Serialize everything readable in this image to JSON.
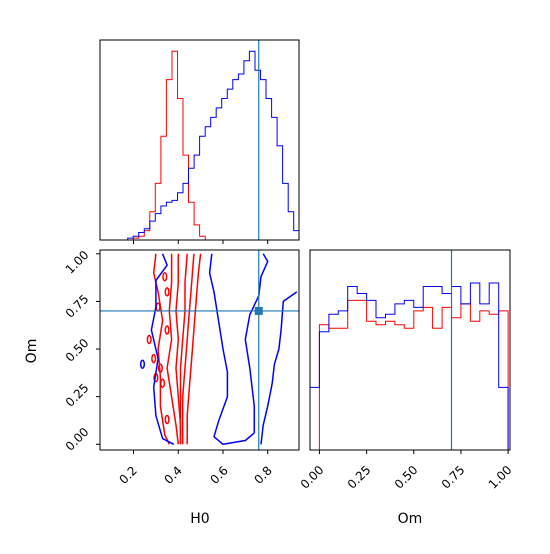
{
  "chart_data": {
    "type": "corner",
    "parameters": [
      "H0",
      "Om"
    ],
    "truth": {
      "H0": 0.76,
      "Om": 0.7
    },
    "truth_color": "#1f77b4",
    "series": [
      {
        "color": "#ff0000"
      },
      {
        "color": "#0000ff"
      }
    ],
    "panels": [
      {
        "id": "hist-h0",
        "type": "step-histogram",
        "xlim": [
          0.05,
          0.94
        ],
        "ylim": [
          0,
          1.06
        ],
        "bins": [
          0.05,
          0.0748,
          0.0995,
          0.1243,
          0.149,
          0.1738,
          0.1985,
          0.2233,
          0.248,
          0.2728,
          0.2975,
          0.3223,
          0.347,
          0.3718,
          0.3965,
          0.4213,
          0.446,
          0.4708,
          0.4955,
          0.5203,
          0.545,
          0.5698,
          0.5945,
          0.6193,
          0.644,
          0.6688,
          0.6935,
          0.7183,
          0.743,
          0.7678,
          0.7925,
          0.8173,
          0.842,
          0.8668,
          0.8915,
          0.9163,
          0.94
        ],
        "series": [
          {
            "values": [
              0,
              0,
              0,
              0,
              0,
              0,
              0.01,
              0.02,
              0.05,
              0.15,
              0.3,
              0.55,
              0.85,
              1.0,
              0.75,
              0.45,
              0.2,
              0.08,
              0.02,
              0,
              0,
              0,
              0,
              0,
              0,
              0,
              0,
              0,
              0,
              0,
              0,
              0,
              0,
              0,
              0,
              0
            ]
          },
          {
            "values": [
              0,
              0,
              0,
              0,
              0,
              0.01,
              0.02,
              0.04,
              0.06,
              0.1,
              0.14,
              0.18,
              0.2,
              0.21,
              0.25,
              0.3,
              0.38,
              0.45,
              0.55,
              0.6,
              0.65,
              0.7,
              0.75,
              0.8,
              0.85,
              0.88,
              0.95,
              1.0,
              0.9,
              0.85,
              0.75,
              0.65,
              0.5,
              0.3,
              0.15,
              0.05
            ]
          }
        ]
      },
      {
        "id": "hist-om",
        "type": "step-histogram",
        "xlim": [
          -0.05,
          1.01
        ],
        "ylim": [
          0,
          1.15
        ],
        "ticks": [
          0.0,
          0.25,
          0.5,
          0.75,
          1.0
        ],
        "tick_labels": [
          "0.00",
          "0.25",
          "0.50",
          "0.75",
          "1.00"
        ],
        "xlabel": "Om",
        "bins": [
          -0.05,
          0,
          0.05,
          0.1,
          0.15,
          0.2,
          0.25,
          0.3,
          0.35,
          0.4,
          0.45,
          0.5,
          0.55,
          0.6,
          0.65,
          0.7,
          0.75,
          0.8,
          0.85,
          0.9,
          0.95,
          1.0
        ],
        "series": [
          {
            "values": [
              0,
              0.72,
              0.7,
              0.7,
              0.86,
              0.86,
              0.74,
              0.72,
              0.74,
              0.72,
              0.7,
              0.8,
              0.82,
              0.7,
              0.82,
              0.76,
              0.84,
              0.74,
              0.8,
              0.78,
              0.8
            ]
          },
          {
            "values": [
              0.36,
              0.68,
              0.78,
              0.8,
              0.94,
              0.9,
              0.86,
              0.76,
              0.78,
              0.84,
              0.86,
              0.82,
              0.94,
              0.94,
              0.9,
              0.94,
              0.84,
              0.96,
              0.84,
              0.96,
              0.36
            ]
          }
        ]
      },
      {
        "id": "joint-h0-om",
        "type": "contour",
        "xlim": [
          0.05,
          0.94
        ],
        "ylim": [
          -0.03,
          1.02
        ],
        "xticks": [
          0.2,
          0.4,
          0.6,
          0.8
        ],
        "xtick_labels": [
          "0.2",
          "0.4",
          "0.6",
          "0.8"
        ],
        "yticks": [
          0.0,
          0.25,
          0.5,
          0.75,
          1.0
        ],
        "ytick_labels": [
          "0.00",
          "0.25",
          "0.50",
          "0.75",
          "1.00"
        ],
        "xlabel": "H0",
        "ylabel": "Om",
        "series": [
          {
            "contours": [
              [
                [
                  0.3,
                  1.0
                ],
                [
                  0.29,
                  0.9
                ],
                [
                  0.31,
                  0.8
                ],
                [
                  0.33,
                  0.65
                ],
                [
                  0.31,
                  0.5
                ],
                [
                  0.32,
                  0.35
                ],
                [
                  0.32,
                  0.2
                ],
                [
                  0.34,
                  0.05
                ],
                [
                  0.36,
                  0.0
                ]
              ],
              [
                [
                  0.5,
                  1.0
                ],
                [
                  0.49,
                  0.9
                ],
                [
                  0.48,
                  0.75
                ],
                [
                  0.47,
                  0.6
                ],
                [
                  0.46,
                  0.45
                ],
                [
                  0.45,
                  0.3
                ],
                [
                  0.44,
                  0.15
                ],
                [
                  0.44,
                  0.0
                ]
              ],
              [
                [
                  0.37,
                  1.0
                ],
                [
                  0.37,
                  0.85
                ],
                [
                  0.36,
                  0.7
                ],
                [
                  0.37,
                  0.55
                ],
                [
                  0.35,
                  0.4
                ],
                [
                  0.37,
                  0.25
                ],
                [
                  0.39,
                  0.1
                ],
                [
                  0.4,
                  0.0
                ]
              ],
              [
                [
                  0.47,
                  1.0
                ],
                [
                  0.46,
                  0.85
                ],
                [
                  0.45,
                  0.7
                ],
                [
                  0.44,
                  0.55
                ],
                [
                  0.43,
                  0.4
                ],
                [
                  0.42,
                  0.25
                ],
                [
                  0.42,
                  0.1
                ],
                [
                  0.42,
                  0.0
                ]
              ],
              [
                [
                  0.4,
                  1.0
                ],
                [
                  0.4,
                  0.85
                ],
                [
                  0.39,
                  0.7
                ],
                [
                  0.4,
                  0.55
                ],
                [
                  0.39,
                  0.4
                ],
                [
                  0.4,
                  0.25
                ],
                [
                  0.41,
                  0.1
                ],
                [
                  0.41,
                  0.0
                ]
              ],
              [
                [
                  0.44,
                  1.0
                ],
                [
                  0.43,
                  0.85
                ],
                [
                  0.43,
                  0.7
                ],
                [
                  0.42,
                  0.55
                ],
                [
                  0.41,
                  0.4
                ],
                [
                  0.41,
                  0.25
                ],
                [
                  0.41,
                  0.1
                ],
                [
                  0.41,
                  0.0
                ]
              ]
            ],
            "blobs": [
              [
                0.27,
                0.55
              ],
              [
                0.29,
                0.45
              ],
              [
                0.3,
                0.35
              ],
              [
                0.32,
                0.4
              ],
              [
                0.31,
                0.72
              ],
              [
                0.35,
                0.8
              ],
              [
                0.35,
                0.6
              ],
              [
                0.34,
                0.88
              ],
              [
                0.33,
                0.32
              ],
              [
                0.35,
                0.13
              ]
            ]
          },
          {
            "contours": [
              [
                [
                  0.33,
                  1.0
                ],
                [
                  0.35,
                  0.94
                ],
                [
                  0.3,
                  0.86
                ],
                [
                  0.3,
                  0.72
                ],
                [
                  0.28,
                  0.6
                ],
                [
                  0.31,
                  0.45
                ],
                [
                  0.29,
                  0.3
                ],
                [
                  0.3,
                  0.15
                ],
                [
                  0.33,
                  0.03
                ],
                [
                  0.38,
                  0.0
                ]
              ],
              [
                [
                  0.55,
                  1.0
                ],
                [
                  0.54,
                  0.9
                ],
                [
                  0.56,
                  0.8
                ],
                [
                  0.58,
                  0.65
                ],
                [
                  0.6,
                  0.5
                ],
                [
                  0.62,
                  0.38
                ],
                [
                  0.62,
                  0.25
                ],
                [
                  0.58,
                  0.12
                ],
                [
                  0.56,
                  0.04
                ],
                [
                  0.6,
                  0.0
                ],
                [
                  0.7,
                  0.02
                ],
                [
                  0.74,
                  0.06
                ]
              ],
              [
                [
                  0.93,
                  0.8
                ],
                [
                  0.87,
                  0.75
                ],
                [
                  0.86,
                  0.6
                ],
                [
                  0.85,
                  0.5
                ],
                [
                  0.83,
                  0.42
                ],
                [
                  0.82,
                  0.32
                ],
                [
                  0.8,
                  0.2
                ],
                [
                  0.78,
                  0.1
                ],
                [
                  0.77,
                  0.0
                ]
              ],
              [
                [
                  0.78,
                  1.0
                ],
                [
                  0.8,
                  0.96
                ],
                [
                  0.77,
                  0.88
                ],
                [
                  0.76,
                  0.78
                ],
                [
                  0.72,
                  0.68
                ],
                [
                  0.7,
                  0.55
                ],
                [
                  0.72,
                  0.4
                ],
                [
                  0.74,
                  0.2
                ],
                [
                  0.74,
                  0.06
                ]
              ]
            ],
            "blobs": [
              [
                0.24,
                0.42
              ]
            ]
          }
        ]
      }
    ]
  }
}
